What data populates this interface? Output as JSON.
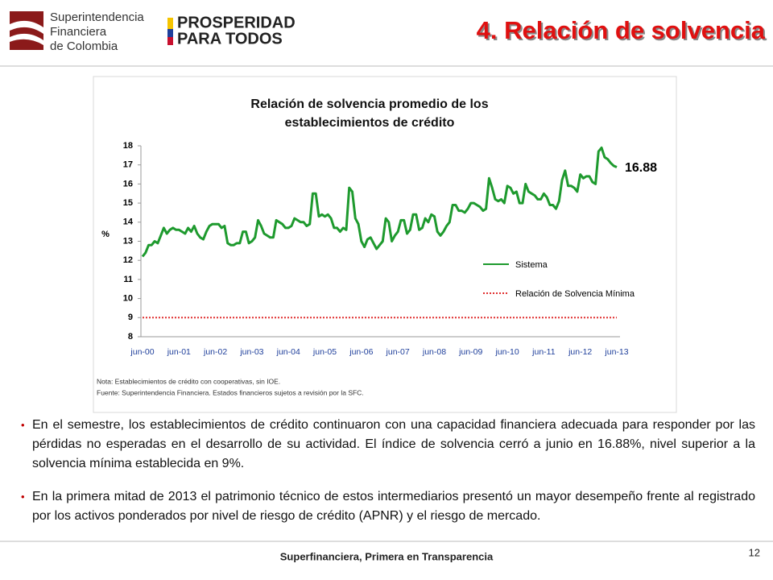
{
  "header": {
    "logo_lines": [
      "Superintendencia",
      "Financiera",
      "de Colombia"
    ],
    "slogan_lines": [
      "PROSPERIDAD",
      "PARA TODOS"
    ],
    "title": "4. Relación de solvencia"
  },
  "chart_data": {
    "type": "line",
    "title_lines": [
      "Relación de solvencia promedio de los",
      "establecimientos de crédito"
    ],
    "y_label": "%",
    "categories": [
      "jun-00",
      null,
      null,
      null,
      null,
      null,
      null,
      null,
      null,
      null,
      null,
      null,
      "jun-01",
      null,
      null,
      null,
      null,
      null,
      null,
      null,
      null,
      null,
      null,
      null,
      "jun-02",
      null,
      null,
      null,
      null,
      null,
      null,
      null,
      null,
      null,
      null,
      null,
      "jun-03",
      null,
      null,
      null,
      null,
      null,
      null,
      null,
      null,
      null,
      null,
      null,
      "jun-04",
      null,
      null,
      null,
      null,
      null,
      null,
      null,
      null,
      null,
      null,
      null,
      "jun-05",
      null,
      null,
      null,
      null,
      null,
      null,
      null,
      null,
      null,
      null,
      null,
      "jun-06",
      null,
      null,
      null,
      null,
      null,
      null,
      null,
      null,
      null,
      null,
      null,
      "jun-07",
      null,
      null,
      null,
      null,
      null,
      null,
      null,
      null,
      null,
      null,
      null,
      "jun-08",
      null,
      null,
      null,
      null,
      null,
      null,
      null,
      null,
      null,
      null,
      null,
      "jun-09",
      null,
      null,
      null,
      null,
      null,
      null,
      null,
      null,
      null,
      null,
      null,
      "jun-10",
      null,
      null,
      null,
      null,
      null,
      null,
      null,
      null,
      null,
      null,
      null,
      "jun-11",
      null,
      null,
      null,
      null,
      null,
      null,
      null,
      null,
      null,
      null,
      null,
      "jun-12",
      null,
      null,
      null,
      null,
      null,
      null,
      null,
      null,
      null,
      null,
      null,
      "jun-13"
    ],
    "series": [
      {
        "name": "Sistema",
        "color": "#1e9a2e",
        "values": [
          12.2,
          12.4,
          12.8,
          12.8,
          13.0,
          12.9,
          13.3,
          13.7,
          13.4,
          13.6,
          13.7,
          13.6,
          13.6,
          13.5,
          13.4,
          13.7,
          13.5,
          13.8,
          13.4,
          13.2,
          13.1,
          13.5,
          13.8,
          13.9,
          13.9,
          13.9,
          13.7,
          13.8,
          12.9,
          12.8,
          12.8,
          12.9,
          12.9,
          13.5,
          13.5,
          12.9,
          13.0,
          13.2,
          14.1,
          13.8,
          13.4,
          13.3,
          13.2,
          13.2,
          14.1,
          14.0,
          13.9,
          13.7,
          13.7,
          13.8,
          14.2,
          14.1,
          14.0,
          14.0,
          13.8,
          13.9,
          15.5,
          15.5,
          14.3,
          14.4,
          14.3,
          14.4,
          14.2,
          13.7,
          13.7,
          13.5,
          13.7,
          13.6,
          15.8,
          15.6,
          14.2,
          13.9,
          13.0,
          12.7,
          13.1,
          13.2,
          12.9,
          12.6,
          12.8,
          13.0,
          14.2,
          14.0,
          13.0,
          13.3,
          13.5,
          14.1,
          14.1,
          13.4,
          13.6,
          14.4,
          14.4,
          13.6,
          13.7,
          14.2,
          14.0,
          14.4,
          14.3,
          13.5,
          13.3,
          13.5,
          13.8,
          14.0,
          14.9,
          14.9,
          14.6,
          14.6,
          14.5,
          14.7,
          15.0,
          15.0,
          14.9,
          14.8,
          14.6,
          14.7,
          16.3,
          15.8,
          15.2,
          15.1,
          15.2,
          15.0,
          15.9,
          15.8,
          15.5,
          15.6,
          15.0,
          15.0,
          16.0,
          15.6,
          15.5,
          15.4,
          15.2,
          15.2,
          15.5,
          15.3,
          14.9,
          14.9,
          14.7,
          15.1,
          16.2,
          16.7,
          15.9,
          15.9,
          15.8,
          15.6,
          16.5,
          16.3,
          16.4,
          16.4,
          16.1,
          16.0,
          17.7,
          17.9,
          17.4,
          17.3,
          17.1,
          16.95,
          16.88
        ]
      }
    ],
    "reference_lines": [
      {
        "name": "Relación de Solvencia Mínima",
        "color": "#e03030",
        "value": 9
      }
    ],
    "ylim": [
      8,
      18
    ],
    "yticks": [
      8,
      9,
      10,
      11,
      12,
      13,
      14,
      15,
      16,
      17,
      18
    ],
    "notes": [
      "Nota: Establecimientos de crédito con cooperativas, sin IOE.",
      "Fuente: Superintendencia Financiera. Estados financieros sujetos a revisión por la SFC."
    ]
  },
  "bullets": [
    "En el semestre, los establecimientos de crédito continuaron con una capacidad financiera adecuada para responder por las pérdidas no esperadas en el desarrollo de su actividad. El índice de solvencia cerró a junio en 16.88%, nivel superior a la solvencia mínima establecida en 9%.",
    "En la primera mitad de 2013 el patrimonio técnico de estos intermediarios presentó un mayor desempeño frente al registrado por los activos ponderados por nivel de riesgo de crédito (APNR) y el riesgo de mercado."
  ],
  "footer": {
    "text": "Superfinanciera, Primera en Transparencia",
    "page": "12"
  }
}
